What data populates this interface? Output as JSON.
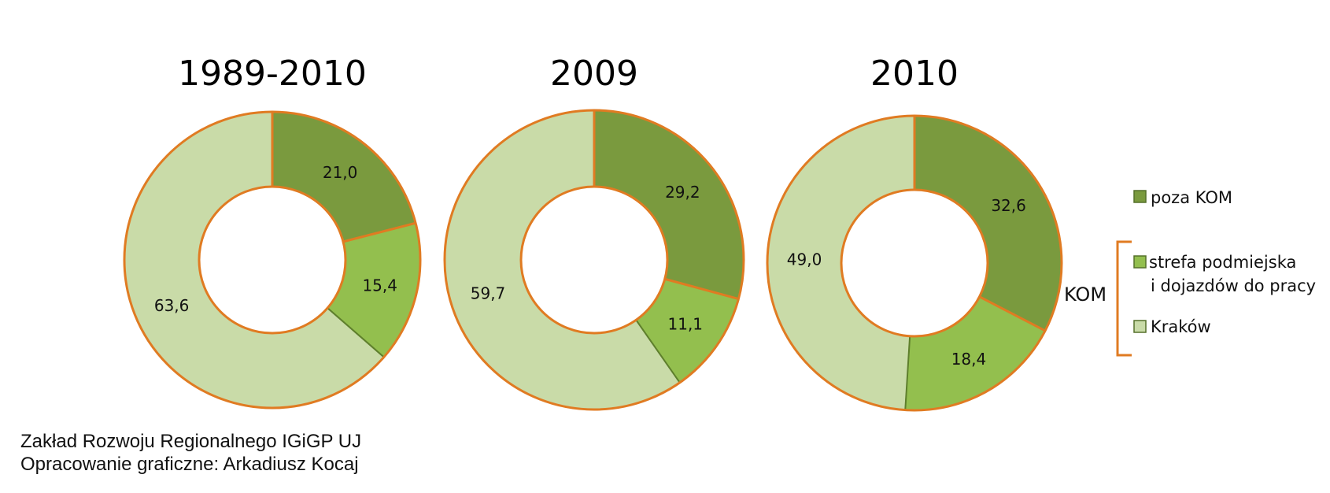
{
  "colors": {
    "poza_kom": "#7a9a3e",
    "strefa": "#93bf4e",
    "krakow": "#c9dba8",
    "outline": "#e07b22",
    "divider": "#5e7f2c"
  },
  "legend": {
    "items": [
      {
        "label": "poza KOM"
      },
      {
        "label": "strefa podmiejska",
        "label2": "i dojazdów do pracy"
      },
      {
        "label": "Kraków"
      }
    ],
    "group_label": "KOM"
  },
  "chart_data": [
    {
      "type": "pie",
      "variant": "donut",
      "title": "1989-2010",
      "categories": [
        "poza KOM",
        "strefa podmiejska i dojazdów do pracy",
        "Kraków"
      ],
      "values": [
        21.0,
        15.4,
        63.6
      ],
      "labels": [
        "21,0",
        "15,4",
        "63,6"
      ]
    },
    {
      "type": "pie",
      "variant": "donut",
      "title": "2009",
      "categories": [
        "poza KOM",
        "strefa podmiejska i dojazdów do pracy",
        "Kraków"
      ],
      "values": [
        29.2,
        11.1,
        59.7
      ],
      "labels": [
        "29,2",
        "11,1",
        "59,7"
      ]
    },
    {
      "type": "pie",
      "variant": "donut",
      "title": "2010",
      "categories": [
        "poza KOM",
        "strefa podmiejska i dojazdów do pracy",
        "Kraków"
      ],
      "values": [
        32.6,
        18.4,
        49.0
      ],
      "labels": [
        "32,6",
        "18,4",
        "49,0"
      ]
    }
  ],
  "credits": {
    "line1": "Zakład Rozwoju Regionalnego IGiGP UJ",
    "line2": "Opracowanie  graficzne: Arkadiusz Kocaj"
  }
}
